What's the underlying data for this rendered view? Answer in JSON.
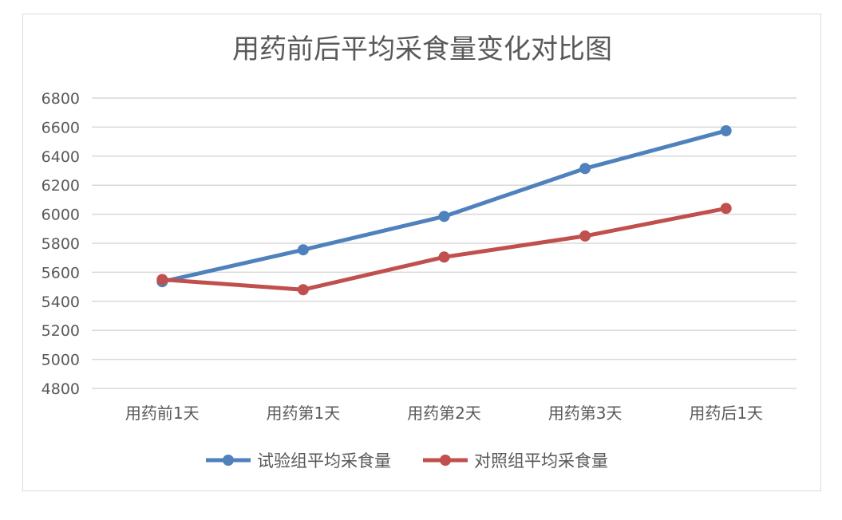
{
  "chart_data": {
    "type": "line",
    "title": "用药前后平均采食量变化对比图",
    "xlabel": "",
    "ylabel": "",
    "categories": [
      "用药前1天",
      "用药第1天",
      "用药第2天",
      "用药第3天",
      "用药后1天"
    ],
    "ylim": [
      4800,
      6800
    ],
    "yticks": [
      4800,
      5000,
      5200,
      5400,
      5600,
      5800,
      6000,
      6200,
      6400,
      6600,
      6800
    ],
    "grid": true,
    "legend_position": "bottom",
    "series": [
      {
        "name": "试验组平均采食量",
        "color": "#4f81bd",
        "values": [
          5535,
          5755,
          5985,
          6315,
          6575
        ]
      },
      {
        "name": "对照组平均采食量",
        "color": "#c0504d",
        "values": [
          5550,
          5480,
          5705,
          5850,
          6040
        ]
      }
    ]
  }
}
